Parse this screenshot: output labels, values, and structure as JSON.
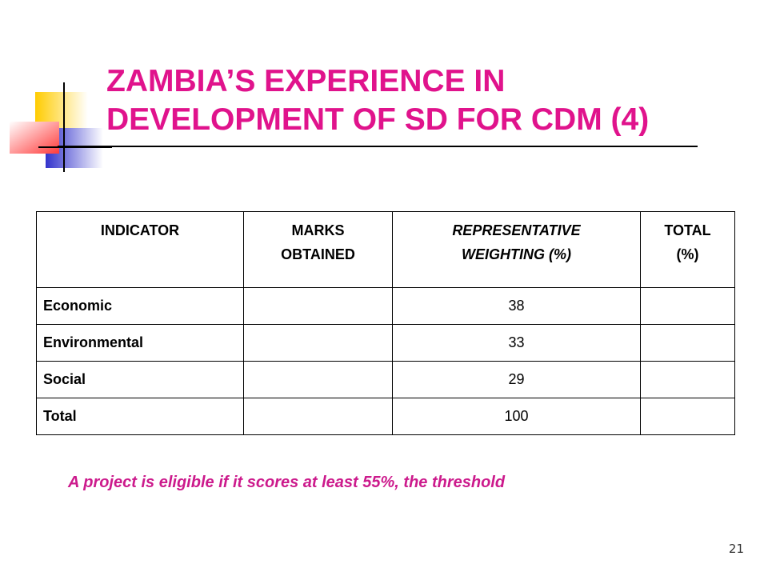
{
  "colors": {
    "title": "#e0138c",
    "note": "#cc1a8c",
    "decor_yellow": "#ffcc00",
    "decor_blue": "#3333cc",
    "decor_red": "#ff3b3b",
    "rule": "#000000"
  },
  "slide": {
    "title_lines": [
      "ZAMBIA’S EXPERIENCE IN",
      "DEVELOPMENT OF SD FOR CDM (4)"
    ],
    "page_number": "21",
    "note": "A project is eligible if it scores at least 55%, the threshold"
  },
  "table": {
    "headers": [
      [
        "INDICATOR"
      ],
      [
        "MARKS",
        "OBTAINED"
      ],
      [
        "REPRESENTATIVE",
        "WEIGHTING (%)"
      ],
      [
        "TOTAL",
        "(%)"
      ]
    ],
    "rows": [
      {
        "indicator": "Economic",
        "marks": "",
        "weighting": "38",
        "total": ""
      },
      {
        "indicator": "Environmental",
        "marks": "",
        "weighting": "33",
        "total": ""
      },
      {
        "indicator": "Social",
        "marks": "",
        "weighting": "29",
        "total": ""
      },
      {
        "indicator": "Total",
        "marks": "",
        "weighting": "100",
        "total": ""
      }
    ]
  }
}
